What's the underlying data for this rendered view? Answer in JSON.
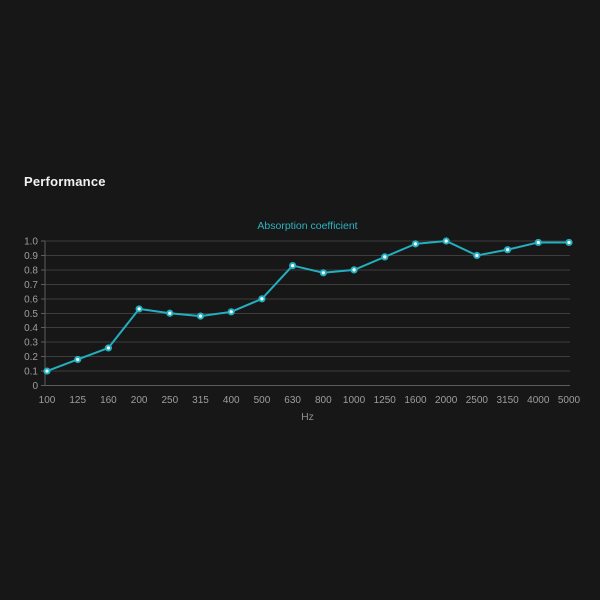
{
  "header": {
    "title": "Performance"
  },
  "chart_data": {
    "type": "line",
    "title": "Absorption coefficient",
    "xlabel": "Hz",
    "ylabel": "",
    "categories": [
      "100",
      "125",
      "160",
      "200",
      "250",
      "315",
      "400",
      "500",
      "630",
      "800",
      "1000",
      "1250",
      "1600",
      "2000",
      "2500",
      "3150",
      "4000",
      "5000"
    ],
    "values": [
      0.1,
      0.18,
      0.26,
      0.53,
      0.5,
      0.48,
      0.51,
      0.6,
      0.83,
      0.78,
      0.8,
      0.89,
      0.98,
      1.0,
      0.9,
      0.94,
      0.99,
      0.99
    ],
    "ylim": [
      0,
      1.0
    ],
    "yticks": [
      0,
      0.1,
      0.2,
      0.3,
      0.4,
      0.5,
      0.6,
      0.7,
      0.8,
      0.9,
      1.0
    ],
    "ytick_labels": [
      "0",
      "0.1",
      "0.2",
      "0.3",
      "0.4",
      "0.5",
      "0.6",
      "0.7",
      "0.8",
      "0.9",
      "1.0"
    ],
    "grid": "horizontal",
    "legend": "none",
    "colors": {
      "page_bg": "#171717",
      "heading_text": "#f2f2f2",
      "title_text": "#2db3c2",
      "line": "#22afc0",
      "marker_ring": "#22afc0",
      "marker_fill": "#ffffff",
      "grid_line": "#3d3d3d",
      "axis_line": "#5c5c5c",
      "tick_label": "#9e9e9e",
      "x_axis_title_text": "#8f8f8f"
    }
  }
}
